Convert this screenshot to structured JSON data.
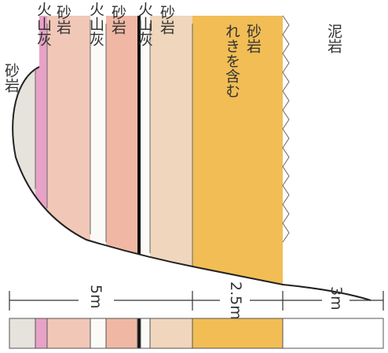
{
  "layers": [
    {
      "label": "砂岩"
    },
    {
      "label": "火山灰"
    },
    {
      "label": "砂岩"
    },
    {
      "label": "火山灰"
    },
    {
      "label": "砂岩"
    },
    {
      "label": "火山灰"
    },
    {
      "label": "砂岩"
    },
    {
      "label": [
        "れきを含む",
        "砂岩"
      ]
    },
    {
      "label": "泥岩"
    }
  ],
  "scale": [
    "5m",
    "2.5m",
    "3m"
  ]
}
